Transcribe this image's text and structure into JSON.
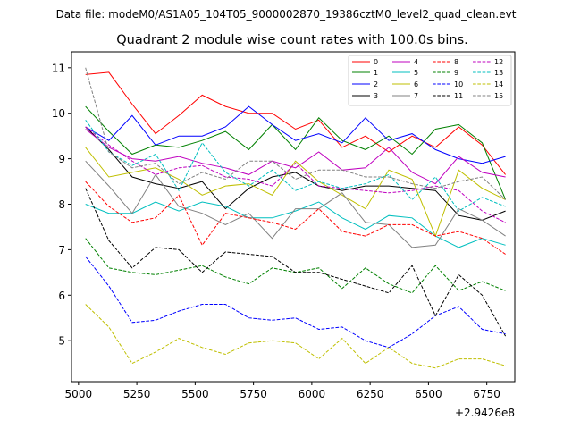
{
  "figure": {
    "suptitle": "Data file: modeM0/AS1A05_104T05_9000002870_19386cztM0_level2_quad_clean.evt",
    "title": "Quadrant 2 module wise count rates with 100.0s bins.",
    "offset_label": "+2.9426e8"
  },
  "chart_data": {
    "type": "line",
    "title": "Quadrant 2 module wise count rates with 100.0s bins.",
    "xlabel": "",
    "ylabel": "",
    "x_offset": 294260000,
    "xlim": [
      4970,
      6870
    ],
    "ylim": [
      4.1,
      11.35
    ],
    "xticks": [
      5000,
      5250,
      5500,
      5750,
      6000,
      6250,
      6500,
      6750
    ],
    "yticks": [
      5,
      6,
      7,
      8,
      9,
      10,
      11
    ],
    "grid": false,
    "legend": {
      "placement": "top-right",
      "columns": 4
    },
    "x": [
      5030,
      5130,
      5230,
      5330,
      5430,
      5530,
      5630,
      5730,
      5830,
      5930,
      6030,
      6130,
      6230,
      6330,
      6430,
      6530,
      6630,
      6730,
      6830
    ],
    "series": [
      {
        "name": "0",
        "color": "#ff0000",
        "dash": "solid",
        "values": [
          10.85,
          10.9,
          10.2,
          9.55,
          9.95,
          10.4,
          10.15,
          10.0,
          10.0,
          9.65,
          9.85,
          9.25,
          9.5,
          9.15,
          9.5,
          9.25,
          9.7,
          9.3,
          8.65
        ]
      },
      {
        "name": "1",
        "color": "#008000",
        "dash": "solid",
        "values": [
          10.15,
          9.6,
          9.1,
          9.3,
          9.25,
          9.4,
          9.6,
          9.2,
          9.75,
          9.2,
          9.9,
          9.4,
          9.2,
          9.5,
          9.1,
          9.65,
          9.75,
          9.35,
          8.1
        ]
      },
      {
        "name": "2",
        "color": "#0000ff",
        "dash": "solid",
        "values": [
          9.7,
          9.4,
          9.95,
          9.3,
          9.5,
          9.5,
          9.7,
          10.15,
          9.75,
          9.4,
          9.55,
          9.35,
          9.9,
          9.4,
          9.55,
          9.2,
          9.0,
          8.9,
          9.05
        ]
      },
      {
        "name": "3",
        "color": "#000000",
        "dash": "solid",
        "values": [
          9.7,
          9.2,
          8.6,
          8.45,
          8.35,
          8.5,
          7.9,
          8.35,
          8.6,
          8.7,
          8.4,
          8.3,
          8.4,
          8.4,
          8.35,
          8.3,
          7.75,
          7.65,
          7.85
        ]
      },
      {
        "name": "4",
        "color": "#bf00bf",
        "dash": "solid",
        "values": [
          9.65,
          9.25,
          9.0,
          8.95,
          9.05,
          8.9,
          8.8,
          8.65,
          8.95,
          8.8,
          9.15,
          8.75,
          8.8,
          9.25,
          8.7,
          8.45,
          9.05,
          8.7,
          8.6
        ]
      },
      {
        "name": "5",
        "color": "#00bfbf",
        "dash": "solid",
        "values": [
          8.0,
          7.8,
          7.8,
          8.05,
          7.85,
          8.05,
          7.95,
          7.7,
          7.7,
          7.85,
          8.05,
          7.7,
          7.45,
          7.75,
          7.7,
          7.3,
          7.05,
          7.25,
          7.1
        ]
      },
      {
        "name": "6",
        "color": "#bfbf00",
        "dash": "solid",
        "values": [
          9.25,
          8.6,
          8.7,
          8.8,
          8.55,
          8.2,
          8.4,
          8.45,
          8.2,
          8.95,
          8.5,
          8.2,
          7.9,
          8.75,
          8.55,
          7.3,
          8.75,
          8.35,
          8.1
        ]
      },
      {
        "name": "7",
        "color": "#808080",
        "dash": "solid",
        "values": [
          8.95,
          8.4,
          7.8,
          8.65,
          7.95,
          7.8,
          7.55,
          7.8,
          7.25,
          7.9,
          7.9,
          8.25,
          7.6,
          7.55,
          7.05,
          7.1,
          7.9,
          7.65,
          7.3
        ]
      },
      {
        "name": "8",
        "color": "#ff0000",
        "dash": "dashed",
        "values": [
          8.5,
          7.95,
          7.6,
          7.7,
          8.2,
          7.1,
          7.8,
          7.7,
          7.6,
          7.45,
          7.9,
          7.4,
          7.3,
          7.55,
          7.55,
          7.3,
          7.4,
          7.25,
          6.9
        ]
      },
      {
        "name": "9",
        "color": "#008000",
        "dash": "dashed",
        "values": [
          7.25,
          6.6,
          6.5,
          6.45,
          6.55,
          6.65,
          6.4,
          6.25,
          6.6,
          6.5,
          6.6,
          6.15,
          6.6,
          6.25,
          6.05,
          6.65,
          6.1,
          6.3,
          6.1
        ]
      },
      {
        "name": "10",
        "color": "#0000ff",
        "dash": "dashed",
        "values": [
          6.85,
          6.2,
          5.4,
          5.45,
          5.65,
          5.8,
          5.8,
          5.5,
          5.45,
          5.5,
          5.25,
          5.3,
          5.0,
          4.85,
          5.15,
          5.55,
          5.75,
          5.25,
          5.15
        ]
      },
      {
        "name": "11",
        "color": "#000000",
        "dash": "dashed",
        "values": [
          8.35,
          7.2,
          6.6,
          7.05,
          7.0,
          6.5,
          6.95,
          6.9,
          6.85,
          6.5,
          6.5,
          6.35,
          6.2,
          6.05,
          6.65,
          5.55,
          6.45,
          6.0,
          5.1
        ]
      },
      {
        "name": "12",
        "color": "#bf00bf",
        "dash": "dashed",
        "values": [
          9.7,
          9.3,
          8.95,
          8.65,
          8.8,
          8.85,
          8.6,
          8.55,
          8.4,
          8.9,
          8.4,
          8.35,
          8.3,
          8.25,
          8.3,
          8.4,
          8.3,
          7.85,
          7.6
        ]
      },
      {
        "name": "13",
        "color": "#00bfbf",
        "dash": "dashed",
        "values": [
          9.85,
          9.15,
          8.85,
          9.1,
          8.3,
          9.35,
          8.7,
          8.4,
          8.75,
          8.3,
          8.5,
          8.35,
          8.45,
          8.65,
          8.1,
          8.6,
          7.85,
          8.15,
          7.95
        ]
      },
      {
        "name": "14",
        "color": "#bfbf00",
        "dash": "dashed",
        "values": [
          5.8,
          5.3,
          4.5,
          4.75,
          5.05,
          4.85,
          4.7,
          4.95,
          5.0,
          4.95,
          4.6,
          5.05,
          4.5,
          4.85,
          4.5,
          4.4,
          4.6,
          4.6,
          4.45
        ]
      },
      {
        "name": "15",
        "color": "#808080",
        "dash": "dashed",
        "values": [
          11.0,
          9.15,
          8.8,
          8.9,
          8.45,
          8.7,
          8.55,
          8.95,
          8.95,
          8.55,
          8.75,
          8.75,
          8.6,
          8.6,
          8.45,
          8.35,
          8.5,
          8.6,
          8.1
        ]
      }
    ]
  }
}
